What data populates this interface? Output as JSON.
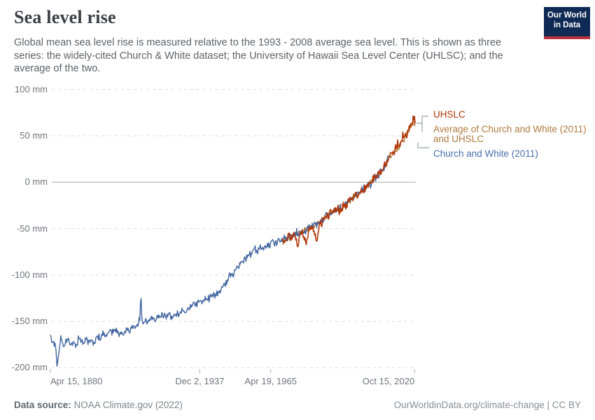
{
  "header": {
    "title": "Sea level rise",
    "subtitle": "Global mean sea level rise is measured relative to the 1993 - 2008 average sea level. This is shown as three series: the widely-cited Church & White dataset; the University of Hawaii Sea Level Center (UHLSC); and the average of the two.",
    "logo": {
      "line1": "Our World",
      "line2": "in Data"
    }
  },
  "legend": {
    "items": [
      {
        "id": "uhslc",
        "label": "UHSLC",
        "color": "#b13507"
      },
      {
        "id": "average",
        "label": "Average of Church and White (2011) and UHSLC",
        "color": "#b07c3e"
      },
      {
        "id": "church",
        "label": "Church and White (2011)",
        "color": "#4a6fae"
      }
    ]
  },
  "footer": {
    "source_label": "Data source:",
    "source_value": "NOAA Climate.gov (2022)",
    "license": "OurWorldinData.org/climate-change | CC BY"
  },
  "colors": {
    "grid": "#dbdbdb",
    "zero_line": "#a9a9a9",
    "tick": "#aab0b5",
    "connector": "#9aa0a5"
  },
  "chart_data": {
    "type": "line",
    "unit": "mm",
    "x_domain": [
      1880.29,
      2021.0
    ],
    "y_domain": [
      -200,
      100
    ],
    "grid": "dashed-horizontal",
    "legend_position": "right",
    "y_ticks": [
      {
        "label": "100 mm",
        "v": 100
      },
      {
        "label": "50 mm",
        "v": 50
      },
      {
        "label": "0 mm",
        "v": 0
      },
      {
        "label": "-50 mm",
        "v": -50
      },
      {
        "label": "-100 mm",
        "v": -100
      },
      {
        "label": "-150 mm",
        "v": -150
      },
      {
        "label": "-200 mm",
        "v": -200
      }
    ],
    "x_ticks": [
      {
        "label": "Apr 15, 1880",
        "t": 1880.29,
        "align": "left"
      },
      {
        "label": "Dec 2, 1937",
        "t": 1937.92,
        "align": "center"
      },
      {
        "label": "Apr 19, 1965",
        "t": 1965.3,
        "align": "center"
      },
      {
        "label": "Oct 15, 2020",
        "t": 2020.79,
        "align": "right"
      }
    ],
    "series": [
      {
        "id": "average",
        "name": "Average of Church and White (2011) and UHSLC",
        "color": "#b07c3e",
        "start": 1970,
        "end": 2021,
        "noise": 5.5,
        "seed": 7,
        "width": 1.4,
        "anchors": [
          [
            1970,
            -63
          ],
          [
            1974,
            -57
          ],
          [
            1978,
            -53
          ],
          [
            1982,
            -47
          ],
          [
            1986,
            -38.5
          ],
          [
            1990,
            -30.5
          ],
          [
            1994,
            -24
          ],
          [
            1998,
            -14
          ],
          [
            2002,
            -5.5
          ],
          [
            2006,
            6.5
          ],
          [
            2009,
            15.5
          ],
          [
            2011,
            25
          ],
          [
            2013,
            32
          ],
          [
            2015,
            40
          ],
          [
            2017,
            49
          ],
          [
            2019,
            58
          ],
          [
            2020.4,
            66
          ],
          [
            2021,
            62
          ]
        ]
      },
      {
        "id": "church",
        "name": "Church and White (2011)",
        "color": "#4165a0",
        "start": 1880.29,
        "end": 2010.8,
        "noise": 7,
        "seed": 3,
        "width": 1.4,
        "anchors": [
          [
            1880.29,
            -164
          ],
          [
            1881.2,
            -172
          ],
          [
            1882.3,
            -178
          ],
          [
            1882.9,
            -197
          ],
          [
            1883.3,
            -188
          ],
          [
            1884.2,
            -170
          ],
          [
            1885.5,
            -176
          ],
          [
            1887,
            -170
          ],
          [
            1888.5,
            -174
          ],
          [
            1890,
            -176
          ],
          [
            1891.5,
            -167
          ],
          [
            1893,
            -172
          ],
          [
            1894.5,
            -169
          ],
          [
            1896,
            -173
          ],
          [
            1897.5,
            -170
          ],
          [
            1899,
            -167
          ],
          [
            1900.5,
            -165
          ],
          [
            1902,
            -164
          ],
          [
            1903.5,
            -161
          ],
          [
            1905,
            -159
          ],
          [
            1906.5,
            -161
          ],
          [
            1908,
            -163
          ],
          [
            1909.5,
            -160
          ],
          [
            1911,
            -158
          ],
          [
            1912.5,
            -156
          ],
          [
            1914,
            -154
          ],
          [
            1914.9,
            -146
          ],
          [
            1915.2,
            -120
          ],
          [
            1915.6,
            -147
          ],
          [
            1917,
            -151
          ],
          [
            1918.5,
            -148
          ],
          [
            1920,
            -146
          ],
          [
            1921.5,
            -147
          ],
          [
            1923,
            -144
          ],
          [
            1924.5,
            -145
          ],
          [
            1926,
            -142
          ],
          [
            1927.5,
            -145
          ],
          [
            1929,
            -143
          ],
          [
            1930.5,
            -140
          ],
          [
            1932,
            -139
          ],
          [
            1933.5,
            -136
          ],
          [
            1935,
            -132
          ],
          [
            1936.5,
            -131
          ],
          [
            1938,
            -129
          ],
          [
            1939.5,
            -127
          ],
          [
            1941,
            -125
          ],
          [
            1942.5,
            -123
          ],
          [
            1944,
            -121
          ],
          [
            1945.5,
            -118
          ],
          [
            1947,
            -113
          ],
          [
            1948.5,
            -106
          ],
          [
            1950,
            -99
          ],
          [
            1951.5,
            -94
          ],
          [
            1953,
            -89
          ],
          [
            1954.5,
            -85
          ],
          [
            1956,
            -81
          ],
          [
            1957.5,
            -77
          ],
          [
            1959,
            -74
          ],
          [
            1960.5,
            -73
          ],
          [
            1962,
            -71
          ],
          [
            1963.5,
            -69
          ],
          [
            1965,
            -67
          ],
          [
            1966.5,
            -65
          ],
          [
            1968,
            -64
          ],
          [
            1969.5,
            -62
          ],
          [
            1971,
            -60
          ],
          [
            1972.5,
            -58
          ],
          [
            1974,
            -56
          ],
          [
            1975.5,
            -56
          ],
          [
            1977,
            -54
          ],
          [
            1978.5,
            -52
          ],
          [
            1980,
            -49
          ],
          [
            1981.5,
            -47
          ],
          [
            1983,
            -46
          ],
          [
            1984.5,
            -42
          ],
          [
            1986,
            -38
          ],
          [
            1987.5,
            -35
          ],
          [
            1989,
            -32
          ],
          [
            1990.5,
            -30
          ],
          [
            1992,
            -28
          ],
          [
            1993.5,
            -26
          ],
          [
            1995,
            -22
          ],
          [
            1996.5,
            -18
          ],
          [
            1998,
            -14
          ],
          [
            1999.5,
            -11
          ],
          [
            2001,
            -8
          ],
          [
            2002.5,
            -5
          ],
          [
            2004,
            -1
          ],
          [
            2005.5,
            4
          ],
          [
            2007,
            9
          ],
          [
            2008.5,
            14
          ],
          [
            2009.5,
            18
          ],
          [
            2010.3,
            23
          ],
          [
            2010.8,
            27
          ]
        ]
      },
      {
        "id": "uhslc",
        "name": "UHSLC",
        "color": "#b13507",
        "start": 1970,
        "end": 2021,
        "noise": 8.5,
        "seed": 11,
        "width": 1.6,
        "anchors": [
          [
            1970,
            -64
          ],
          [
            1971.5,
            -61
          ],
          [
            1973,
            -59
          ],
          [
            1974.5,
            -58
          ],
          [
            1975.8,
            -70
          ],
          [
            1976.4,
            -56
          ],
          [
            1977.5,
            -55
          ],
          [
            1979.2,
            -67
          ],
          [
            1980,
            -51
          ],
          [
            1981.5,
            -49
          ],
          [
            1983.2,
            -64
          ],
          [
            1984.2,
            -45
          ],
          [
            1985.5,
            -41
          ],
          [
            1987,
            -37
          ],
          [
            1988.5,
            -34
          ],
          [
            1990,
            -31
          ],
          [
            1991.5,
            -29
          ],
          [
            1993,
            -27
          ],
          [
            1994.5,
            -24
          ],
          [
            1996,
            -20
          ],
          [
            1997.5,
            -16
          ],
          [
            1999,
            -12
          ],
          [
            2000.5,
            -9
          ],
          [
            2002,
            -6
          ],
          [
            2003.5,
            -2
          ],
          [
            2005,
            3
          ],
          [
            2006.5,
            8
          ],
          [
            2008,
            13
          ],
          [
            2009.5,
            18
          ],
          [
            2011,
            27
          ],
          [
            2012.5,
            32
          ],
          [
            2014,
            38
          ],
          [
            2015.5,
            44
          ],
          [
            2017,
            51
          ],
          [
            2018,
            55
          ],
          [
            2019,
            61
          ],
          [
            2019.8,
            64
          ],
          [
            2020.4,
            69
          ],
          [
            2020.8,
            70
          ],
          [
            2021,
            64
          ]
        ]
      }
    ]
  }
}
